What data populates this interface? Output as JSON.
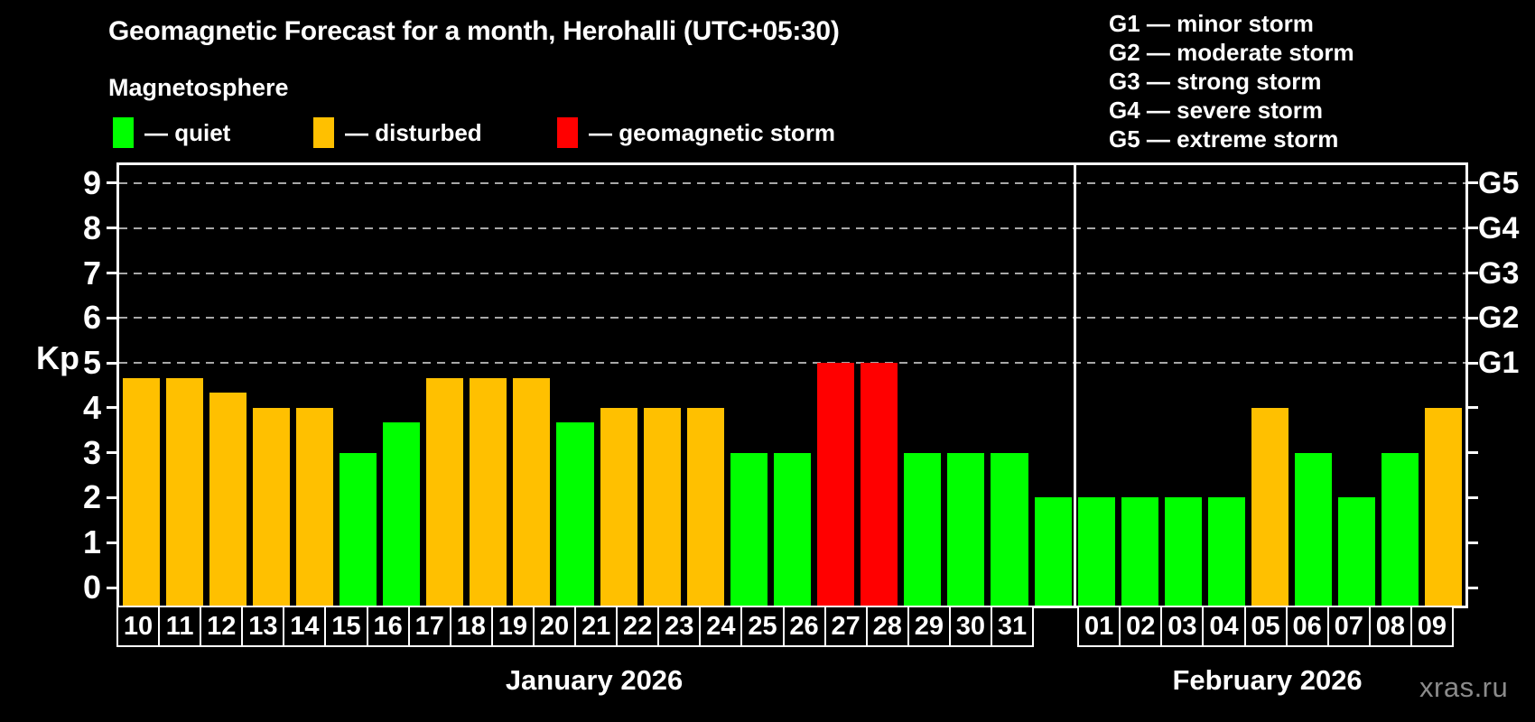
{
  "title": "Geomagnetic Forecast for a month, Herohalli (UTC+05:30)",
  "subtitle": "Magnetosphere",
  "legend": [
    {
      "label": "— quiet",
      "status": "quiet",
      "color": "#00ff00"
    },
    {
      "label": "— disturbed",
      "status": "disturbed",
      "color": "#ffc000"
    },
    {
      "label": "— geomagnetic storm",
      "status": "storm",
      "color": "#ff0000"
    }
  ],
  "g_legend": [
    "G1 — minor storm",
    "G2 — moderate storm",
    "G3 — strong storm",
    "G4 — severe storm",
    "G5 — extreme storm"
  ],
  "watermark": "xras.ru",
  "colors": {
    "quiet": "#00ff00",
    "disturbed": "#ffc000",
    "storm": "#ff0000",
    "background": "#000000",
    "frame": "#ffffff",
    "gridline": "#a8a8a8"
  },
  "chart_data": {
    "type": "bar",
    "ylabel": "Kp",
    "ylim": [
      -0.4,
      9.4
    ],
    "yticks": [
      0,
      1,
      2,
      3,
      4,
      5,
      6,
      7,
      8,
      9
    ],
    "gridlines_at": [
      5,
      6,
      7,
      8,
      9
    ],
    "right_axis_labels": [
      {
        "kp": 5,
        "label": "G1"
      },
      {
        "kp": 6,
        "label": "G2"
      },
      {
        "kp": 7,
        "label": "G3"
      },
      {
        "kp": 8,
        "label": "G4"
      },
      {
        "kp": 9,
        "label": "G5"
      }
    ],
    "legend_position": "top",
    "grid": "dashed horizontal at Kp 5-9 only",
    "months": [
      {
        "label": "January 2026",
        "days": [
          {
            "day": "10",
            "kp": 4.67,
            "status": "disturbed"
          },
          {
            "day": "11",
            "kp": 4.67,
            "status": "disturbed"
          },
          {
            "day": "12",
            "kp": 4.33,
            "status": "disturbed"
          },
          {
            "day": "13",
            "kp": 4.0,
            "status": "disturbed"
          },
          {
            "day": "14",
            "kp": 4.0,
            "status": "disturbed"
          },
          {
            "day": "15",
            "kp": 3.0,
            "status": "quiet"
          },
          {
            "day": "16",
            "kp": 3.67,
            "status": "quiet"
          },
          {
            "day": "17",
            "kp": 4.67,
            "status": "disturbed"
          },
          {
            "day": "18",
            "kp": 4.67,
            "status": "disturbed"
          },
          {
            "day": "19",
            "kp": 4.67,
            "status": "disturbed"
          },
          {
            "day": "20",
            "kp": 3.67,
            "status": "quiet"
          },
          {
            "day": "21",
            "kp": 4.0,
            "status": "disturbed"
          },
          {
            "day": "22",
            "kp": 4.0,
            "status": "disturbed"
          },
          {
            "day": "23",
            "kp": 4.0,
            "status": "disturbed"
          },
          {
            "day": "24",
            "kp": 3.0,
            "status": "quiet"
          },
          {
            "day": "25",
            "kp": 3.0,
            "status": "quiet"
          },
          {
            "day": "26",
            "kp": 5.0,
            "status": "storm"
          },
          {
            "day": "27",
            "kp": 5.0,
            "status": "storm"
          },
          {
            "day": "28",
            "kp": 3.0,
            "status": "quiet"
          },
          {
            "day": "29",
            "kp": 3.0,
            "status": "quiet"
          },
          {
            "day": "30",
            "kp": 3.0,
            "status": "quiet"
          },
          {
            "day": "31",
            "kp": 2.0,
            "status": "quiet"
          }
        ]
      },
      {
        "label": "February 2026",
        "days": [
          {
            "day": "01",
            "kp": 2.0,
            "status": "quiet"
          },
          {
            "day": "02",
            "kp": 2.0,
            "status": "quiet"
          },
          {
            "day": "03",
            "kp": 2.0,
            "status": "quiet"
          },
          {
            "day": "04",
            "kp": 2.0,
            "status": "quiet"
          },
          {
            "day": "05",
            "kp": 4.0,
            "status": "disturbed"
          },
          {
            "day": "06",
            "kp": 3.0,
            "status": "quiet"
          },
          {
            "day": "07",
            "kp": 2.0,
            "status": "quiet"
          },
          {
            "day": "08",
            "kp": 3.0,
            "status": "quiet"
          },
          {
            "day": "09",
            "kp": 4.0,
            "status": "disturbed"
          }
        ]
      }
    ]
  }
}
